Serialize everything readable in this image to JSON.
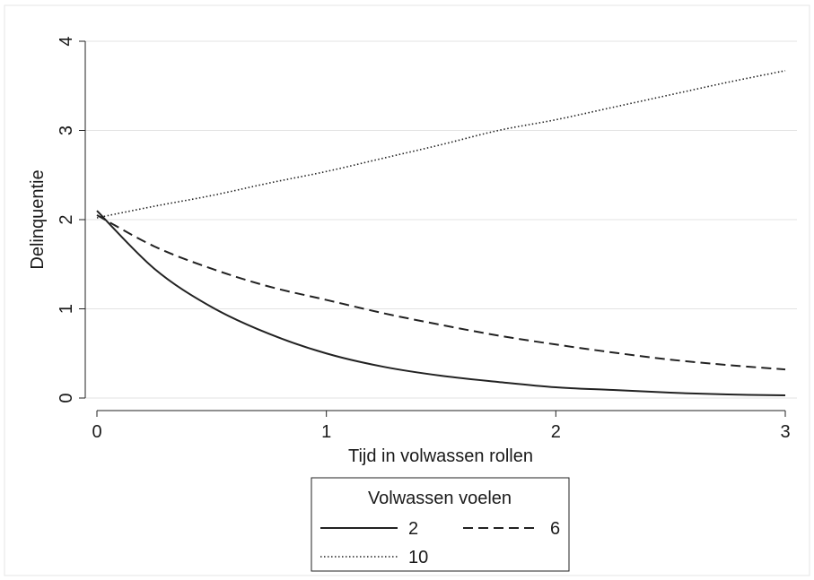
{
  "chart_data": {
    "type": "line",
    "xlabel": "Tijd in volwassen rollen",
    "ylabel": "Delinquentie",
    "xlim": [
      0,
      3
    ],
    "ylim": [
      0,
      4
    ],
    "xticks": [
      0,
      1,
      2,
      3
    ],
    "yticks": [
      0,
      1,
      2,
      3,
      4
    ],
    "grid": "horizontal",
    "x": [
      0,
      0.25,
      0.5,
      0.75,
      1,
      1.25,
      1.5,
      1.75,
      2,
      2.25,
      2.5,
      2.75,
      3
    ],
    "series": [
      {
        "name": "2",
        "style": "solid",
        "values": [
          2.1,
          1.45,
          1.02,
          0.72,
          0.5,
          0.35,
          0.25,
          0.18,
          0.12,
          0.09,
          0.06,
          0.04,
          0.03
        ]
      },
      {
        "name": "6",
        "style": "dashed",
        "values": [
          2.05,
          1.7,
          1.45,
          1.25,
          1.1,
          0.95,
          0.82,
          0.7,
          0.6,
          0.51,
          0.43,
          0.37,
          0.32
        ]
      },
      {
        "name": "10",
        "style": "dotted",
        "values": [
          2.02,
          2.15,
          2.27,
          2.41,
          2.54,
          2.69,
          2.84,
          3.0,
          3.12,
          3.26,
          3.4,
          3.54,
          3.67
        ]
      }
    ],
    "legend": {
      "title": "Volwassen voelen",
      "placement": "bottom"
    }
  }
}
